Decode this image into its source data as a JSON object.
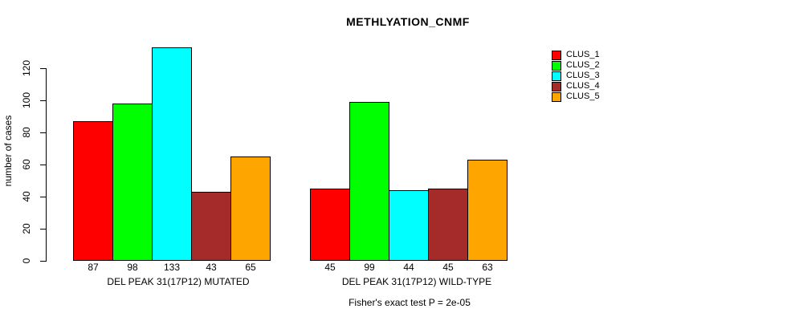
{
  "figure": {
    "title": "METHLYATION_CNMF",
    "ylabel": "number of cases",
    "footer": "Fisher's exact test P = 2e-05"
  },
  "chart_data": {
    "type": "bar",
    "title": "METHLYATION_CNMF",
    "ylabel": "number of cases",
    "xlabel": "",
    "ylim": [
      0,
      133
    ],
    "yticks": [
      0,
      20,
      40,
      60,
      80,
      100,
      120
    ],
    "grid": false,
    "legend_position": "right-outside",
    "series_labels": [
      "CLUS_1",
      "CLUS_2",
      "CLUS_3",
      "CLUS_4",
      "CLUS_5"
    ],
    "colors": [
      "#FF0000",
      "#00FF00",
      "#00FFFF",
      "#A52A2A",
      "#FFA500"
    ],
    "groups": [
      {
        "label": "DEL PEAK 31(17P12) MUTATED",
        "values": [
          87,
          98,
          133,
          43,
          65
        ]
      },
      {
        "label": "DEL PEAK 31(17P12) WILD-TYPE",
        "values": [
          45,
          99,
          44,
          45,
          63
        ]
      }
    ],
    "annotation": "Fisher's exact test P = 2e-05"
  }
}
